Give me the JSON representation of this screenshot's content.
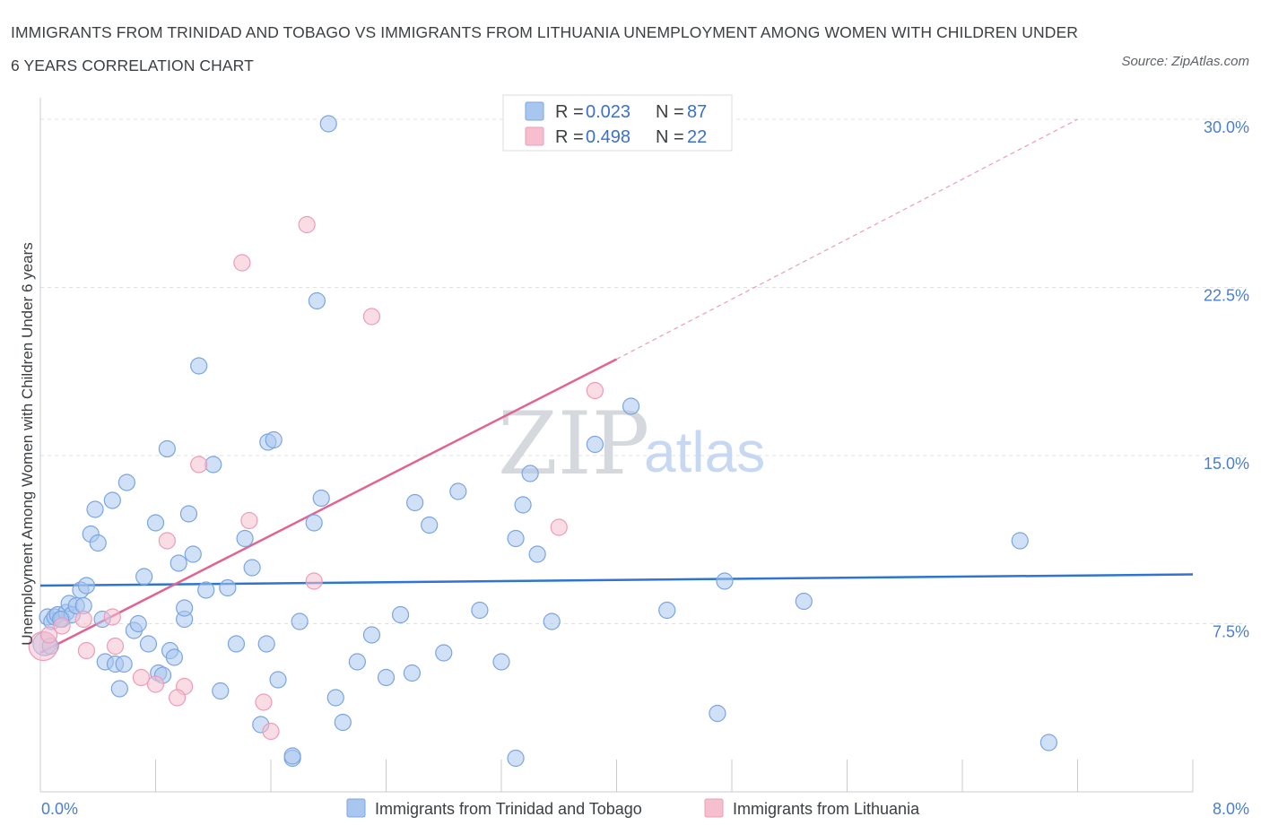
{
  "title": "IMMIGRANTS FROM TRINIDAD AND TOBAGO VS IMMIGRANTS FROM LITHUANIA UNEMPLOYMENT AMONG WOMEN WITH CHILDREN UNDER 6 YEARS CORRELATION CHART",
  "source": "Source: ZipAtlas.com",
  "watermark": {
    "zip": "ZIP",
    "atlas": "atlas"
  },
  "legend": {
    "r_label": "R =",
    "n_label": "N =",
    "rows": [
      {
        "r": "0.023",
        "n": "87"
      },
      {
        "r": "0.498",
        "n": "22"
      }
    ]
  },
  "colors": {
    "series1_fill": "#a9c6ef",
    "series1_stroke": "#7aa5e0",
    "series1_line": "#2f74d0",
    "series2_fill": "#f6bfd0",
    "series2_stroke": "#ee9bb6",
    "series2_line": "#e2638f",
    "tick_label": "#4a7fd0",
    "grid": "#dfe1e5"
  },
  "chart_data": {
    "type": "scatter",
    "title": "IMMIGRANTS FROM TRINIDAD AND TOBAGO VS IMMIGRANTS FROM LITHUANIA UNEMPLOYMENT AMONG WOMEN WITH CHILDREN UNDER 6 YEARS CORRELATION CHART",
    "xlabel": "",
    "ylabel": "Unemployment Among Women with Children Under 6 years",
    "xlim": [
      0,
      8
    ],
    "ylim": [
      0,
      30
    ],
    "x_tick_labels": [
      "0.0%",
      "8.0%"
    ],
    "y_ticks": [
      7.5,
      15,
      22.5,
      30
    ],
    "y_tick_labels": [
      "7.5%",
      "15.0%",
      "22.5%",
      "30.0%"
    ],
    "grid": true,
    "legend_position": "top-center",
    "series": [
      {
        "name": "Immigrants from Trinidad and Tobago",
        "R": 0.023,
        "N": 87,
        "trend": {
          "x": [
            0,
            8
          ],
          "y": [
            9.2,
            9.7
          ],
          "dashed_extension": false
        },
        "points": [
          [
            0.03,
            6.6
          ],
          [
            0.05,
            7.8
          ],
          [
            0.08,
            7.6
          ],
          [
            0.1,
            7.8
          ],
          [
            0.12,
            7.9
          ],
          [
            0.15,
            7.7
          ],
          [
            0.18,
            8.0
          ],
          [
            0.2,
            8.4
          ],
          [
            0.22,
            7.9
          ],
          [
            0.25,
            8.3
          ],
          [
            0.28,
            9.0
          ],
          [
            0.3,
            8.3
          ],
          [
            0.32,
            9.2
          ],
          [
            0.35,
            11.5
          ],
          [
            0.38,
            12.6
          ],
          [
            0.4,
            11.1
          ],
          [
            0.43,
            7.7
          ],
          [
            0.45,
            5.8
          ],
          [
            0.5,
            13.0
          ],
          [
            0.52,
            5.7
          ],
          [
            0.55,
            4.6
          ],
          [
            0.6,
            13.8
          ],
          [
            0.65,
            7.2
          ],
          [
            0.68,
            7.5
          ],
          [
            0.72,
            9.6
          ],
          [
            0.75,
            6.6
          ],
          [
            0.8,
            12.0
          ],
          [
            0.82,
            5.3
          ],
          [
            0.88,
            15.3
          ],
          [
            0.9,
            6.3
          ],
          [
            0.93,
            6.0
          ],
          [
            0.96,
            10.2
          ],
          [
            1.0,
            7.7
          ],
          [
            1.03,
            12.4
          ],
          [
            1.06,
            10.6
          ],
          [
            1.1,
            19.0
          ],
          [
            1.15,
            9.0
          ],
          [
            1.2,
            14.6
          ],
          [
            1.25,
            4.5
          ],
          [
            1.3,
            9.1
          ],
          [
            1.36,
            6.6
          ],
          [
            1.42,
            11.3
          ],
          [
            1.47,
            10.0
          ],
          [
            1.53,
            3.0
          ],
          [
            1.58,
            15.6
          ],
          [
            1.65,
            5.0
          ],
          [
            1.75,
            1.5
          ],
          [
            1.8,
            7.6
          ],
          [
            1.9,
            12.0
          ],
          [
            1.95,
            13.1
          ],
          [
            2.0,
            29.8
          ],
          [
            2.05,
            4.2
          ],
          [
            2.1,
            3.1
          ],
          [
            2.2,
            5.8
          ],
          [
            2.3,
            7.0
          ],
          [
            2.4,
            5.1
          ],
          [
            2.5,
            7.9
          ],
          [
            2.6,
            12.9
          ],
          [
            2.7,
            11.9
          ],
          [
            2.8,
            6.2
          ],
          [
            2.9,
            13.4
          ],
          [
            3.05,
            8.1
          ],
          [
            3.2,
            5.8
          ],
          [
            3.3,
            1.5
          ],
          [
            3.35,
            12.8
          ],
          [
            3.4,
            14.2
          ],
          [
            3.45,
            10.6
          ],
          [
            3.55,
            7.6
          ],
          [
            3.85,
            15.5
          ],
          [
            4.1,
            17.2
          ],
          [
            4.35,
            8.1
          ],
          [
            4.7,
            3.5
          ],
          [
            4.75,
            9.4
          ],
          [
            5.3,
            8.5
          ],
          [
            6.8,
            11.2
          ],
          [
            7.0,
            2.2
          ],
          [
            0.07,
            6.5
          ],
          [
            0.14,
            7.7
          ],
          [
            1.92,
            21.9
          ],
          [
            1.62,
            15.7
          ],
          [
            0.58,
            5.7
          ],
          [
            1.0,
            8.2
          ],
          [
            2.58,
            5.3
          ],
          [
            1.57,
            6.6
          ],
          [
            0.85,
            5.2
          ],
          [
            3.3,
            11.3
          ],
          [
            1.75,
            1.6
          ]
        ]
      },
      {
        "name": "Immigrants from Lithuania",
        "R": 0.498,
        "N": 22,
        "trend": {
          "x": [
            0,
            4.0
          ],
          "y": [
            6.2,
            19.3
          ],
          "dashed_extension": {
            "x": [
              4.0,
              7.2
            ],
            "y": [
              19.3,
              30.0
            ]
          }
        },
        "points": [
          [
            0.02,
            6.5
          ],
          [
            0.06,
            7.0
          ],
          [
            0.15,
            7.4
          ],
          [
            0.3,
            7.7
          ],
          [
            0.32,
            6.3
          ],
          [
            0.5,
            7.8
          ],
          [
            0.52,
            6.5
          ],
          [
            0.7,
            5.1
          ],
          [
            0.8,
            4.8
          ],
          [
            0.88,
            11.2
          ],
          [
            1.0,
            4.7
          ],
          [
            1.1,
            14.6
          ],
          [
            1.4,
            23.6
          ],
          [
            1.45,
            12.1
          ],
          [
            1.55,
            4.0
          ],
          [
            1.6,
            2.7
          ],
          [
            1.85,
            25.3
          ],
          [
            1.9,
            9.4
          ],
          [
            2.3,
            21.2
          ],
          [
            3.6,
            11.8
          ],
          [
            3.85,
            17.9
          ],
          [
            0.95,
            4.2
          ]
        ]
      }
    ]
  },
  "bottom_legend": [
    {
      "label": "Immigrants from Trinidad and Tobago"
    },
    {
      "label": "Immigrants from Lithuania"
    }
  ]
}
